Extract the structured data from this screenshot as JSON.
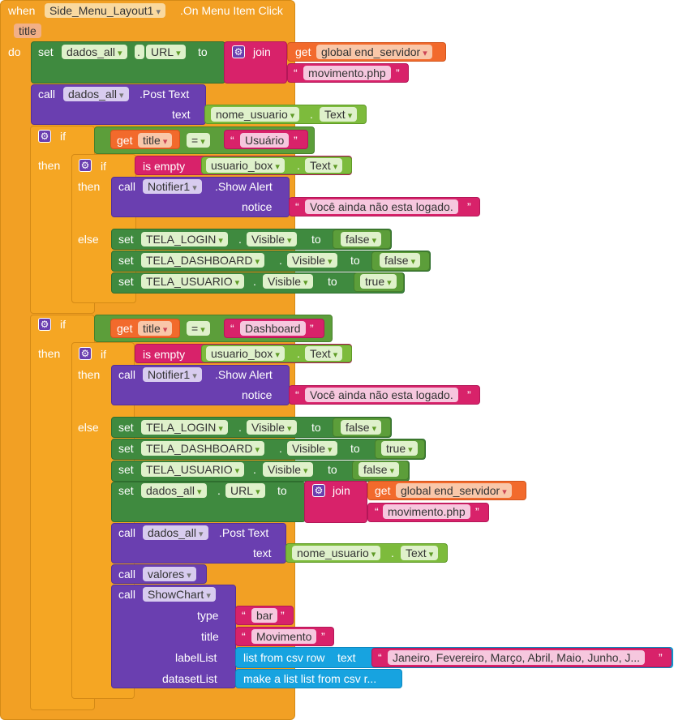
{
  "event": {
    "when": "when",
    "component": "Side_Menu_Layout1",
    "event_name": ".On Menu Item Click",
    "param": "title",
    "do": "do"
  },
  "kw": {
    "set": "set",
    "to": "to",
    "call": "call",
    "text": "text",
    "notice": "notice",
    "if": "if",
    "then": "then",
    "else": "else",
    "get": "get",
    "join": "join",
    "is_empty": "is empty",
    "eq": "=",
    "dot": ".",
    "q_open": "“",
    "q_close": "”",
    "type": "type",
    "title": "title",
    "labelList": "labelList",
    "datasetList": "datasetList"
  },
  "blocks": {
    "dados_all": "dados_all",
    "url_prop": "URL",
    "global_end_servidor": "global end_servidor",
    "movimento_php": "movimento.php",
    "post_text": ".Post Text",
    "nome_usuario": "nome_usuario",
    "text_prop": "Text",
    "title_var": "title",
    "usuario_str": "Usuário",
    "dashboard_str": "Dashboard",
    "usuario_box": "usuario_box",
    "notifier": "Notifier1",
    "show_alert": ".Show Alert",
    "alert_msg": "Você ainda não esta logado.",
    "tela_login": "TELA_LOGIN",
    "tela_dashboard": "TELA_DASHBOARD",
    "tela_usuario": "TELA_USUARIO",
    "visible_prop": "Visible",
    "false_val": "false",
    "true_val": "true",
    "valores": "valores",
    "show_chart": "ShowChart",
    "bar_str": "bar",
    "movimento_str": "Movimento",
    "list_from_csv_row": "list from csv row",
    "months_str": "Janeiro, Fevereiro, Março, Abril, Maio, Junho, J...",
    "make_list": "make a list list from csv r..."
  }
}
